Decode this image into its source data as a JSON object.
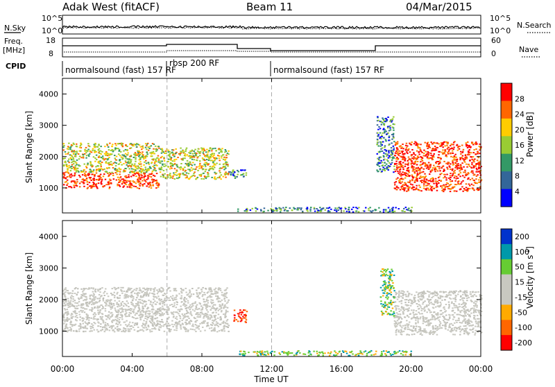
{
  "header": {
    "title": "Adak West (fitACF)",
    "beam": "Beam 11",
    "date": "04/Mar/2015"
  },
  "top_panels": {
    "nsky_label": "N.Sky",
    "nsky_ticks": [
      "10^5",
      "10^0"
    ],
    "nsearch_label": "N.Search",
    "nsearch_ticks": [
      "10^5",
      "10^0"
    ],
    "freq_label": "Freq.",
    "freq_unit": "[MHz]",
    "freq_ticks": [
      "18",
      "8"
    ],
    "nave_label": "Nave",
    "nave_ticks": [
      "60",
      "0"
    ],
    "cpid_label": "CPID",
    "cpid_segments": [
      {
        "label": "normalsound (fast) 157 RF",
        "start_h": 0.0,
        "end_h": 6.0
      },
      {
        "label": "rbsp 200 RF",
        "start_h": 6.0,
        "end_h": 12.0
      },
      {
        "label": "normalsound (fast) 157 RF",
        "start_h": 12.0,
        "end_h": 24.0
      }
    ]
  },
  "chart_data": [
    {
      "type": "heatmap",
      "panel": "power",
      "ylabel": "Slant Range [km]",
      "xlabel": "",
      "ylim": [
        200,
        4500
      ],
      "xlim_hours": [
        0,
        24
      ],
      "colorbar_label": "Power [dB]",
      "colorbar_ticks": [
        "28",
        "24",
        "20",
        "16",
        "12",
        "8",
        "4"
      ],
      "colorbar_colors": [
        "#ff0000",
        "#ff6600",
        "#ffcc00",
        "#99cc33",
        "#339966",
        "#336699",
        "#0000ff"
      ],
      "regions": [
        {
          "t0": 0.0,
          "t1": 5.5,
          "r0": 1000,
          "r1": 1500,
          "level": "high"
        },
        {
          "t0": 0.0,
          "t1": 5.5,
          "r0": 1500,
          "r1": 2450,
          "level": "mid"
        },
        {
          "t0": 5.5,
          "t1": 9.5,
          "r0": 1300,
          "r1": 2300,
          "level": "mid"
        },
        {
          "t0": 9.5,
          "t1": 10.5,
          "r0": 1300,
          "r1": 1600,
          "level": "low"
        },
        {
          "t0": 18.0,
          "t1": 19.0,
          "r0": 1500,
          "r1": 3300,
          "level": "low"
        },
        {
          "t0": 19.0,
          "t1": 24.0,
          "r0": 900,
          "r1": 2500,
          "level": "high"
        },
        {
          "t0": 10.0,
          "t1": 20.0,
          "r0": 250,
          "r1": 400,
          "level": "low"
        }
      ]
    },
    {
      "type": "heatmap",
      "panel": "velocity",
      "ylabel": "Slant Range [km]",
      "xlabel": "Time UT",
      "ylim": [
        200,
        4500
      ],
      "xlim_hours": [
        0,
        24
      ],
      "colorbar_label": "Velocity [m s^-1]",
      "colorbar_ticks": [
        "200",
        "100",
        "50",
        "15",
        "-15",
        "-50",
        "-100",
        "-200"
      ],
      "colorbar_colors": [
        "#0033cc",
        "#0099aa",
        "#66cc33",
        "#c8c8c0",
        "#c8c8c0",
        "#ffaa00",
        "#ff6600",
        "#ff0000"
      ],
      "regions": [
        {
          "t0": 0.0,
          "t1": 9.5,
          "r0": 1000,
          "r1": 2400,
          "level": "gray"
        },
        {
          "t0": 9.8,
          "t1": 10.6,
          "r0": 1300,
          "r1": 1700,
          "level": "red"
        },
        {
          "t0": 19.0,
          "t1": 24.0,
          "r0": 900,
          "r1": 2300,
          "level": "gray"
        },
        {
          "t0": 18.2,
          "t1": 19.0,
          "r0": 1500,
          "r1": 3000,
          "level": "green"
        },
        {
          "t0": 10.0,
          "t1": 20.0,
          "r0": 250,
          "r1": 400,
          "level": "green"
        }
      ]
    }
  ],
  "axis": {
    "y_ticks": [
      "4000",
      "3000",
      "2000",
      "1000"
    ],
    "x_ticks": [
      "00:00",
      "04:00",
      "08:00",
      "12:00",
      "16:00",
      "20:00",
      "00:00"
    ]
  }
}
